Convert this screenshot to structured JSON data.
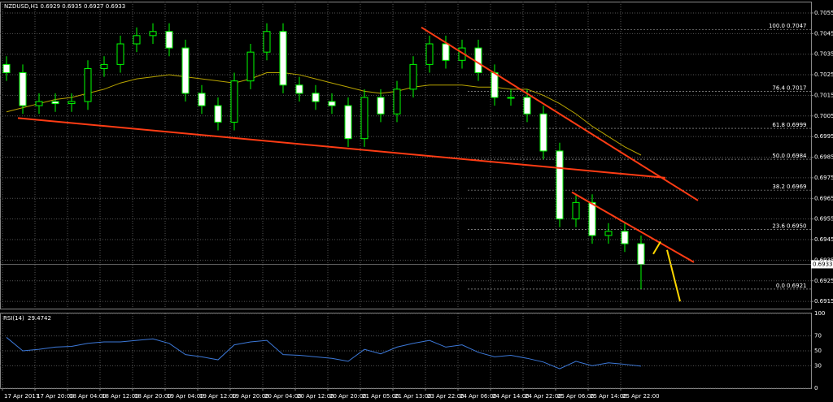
{
  "chart_data": {
    "type": "candlestick",
    "title": "NZDUSD,H1  0.6929 0.6935 0.6927 0.6933",
    "categories": [
      "17 Apr 2017",
      null,
      "17 Apr 20:00",
      null,
      "18 Apr 04:00",
      null,
      "18 Apr 12:00",
      null,
      "18 Apr 20:00",
      null,
      "19 Apr 04:00",
      null,
      "19 Apr 12:00",
      null,
      "19 Apr 20:00",
      null,
      "20 Apr 04:00",
      null,
      "20 Apr 12:00",
      null,
      "20 Apr 20:00",
      null,
      "21 Apr 05:00",
      null,
      "21 Apr 13:00",
      null,
      "23 Apr 22:00",
      null,
      "24 Apr 06:00",
      null,
      "24 Apr 14:00",
      null,
      "24 Apr 22:00",
      null,
      "25 Apr 06:00",
      null,
      "25 Apr 14:00",
      null,
      "25 Apr 22:00",
      null
    ],
    "open": [
      0.703,
      0.7026,
      0.701,
      0.7012,
      0.7011,
      0.7012,
      0.7028,
      0.703,
      0.704,
      0.7044,
      0.7046,
      0.7038,
      0.7016,
      0.701,
      0.7002,
      0.7022,
      0.7036,
      0.7046,
      0.702,
      0.7016,
      0.7012,
      0.701,
      0.6994,
      0.7014,
      0.7006,
      0.7018,
      0.703,
      0.704,
      0.7032,
      0.7038,
      0.7026,
      0.7014,
      0.7014,
      0.7006,
      0.6988,
      0.6955,
      0.6963,
      0.6947,
      0.6949,
      0.6943
    ],
    "high": [
      0.7034,
      0.703,
      0.7016,
      0.7016,
      0.7016,
      0.7032,
      0.7034,
      0.7044,
      0.7048,
      0.705,
      0.705,
      0.7042,
      0.702,
      0.7014,
      0.7026,
      0.704,
      0.705,
      0.705,
      0.7024,
      0.702,
      0.7016,
      0.7014,
      0.7018,
      0.7018,
      0.7022,
      0.7034,
      0.7044,
      0.7044,
      0.7042,
      0.7042,
      0.703,
      0.7018,
      0.7018,
      0.701,
      0.6992,
      0.6967,
      0.6967,
      0.6953,
      0.6953,
      0.6947
    ],
    "low": [
      0.7022,
      0.7006,
      0.7006,
      0.7007,
      0.7007,
      0.7008,
      0.7024,
      0.7026,
      0.7036,
      0.704,
      0.7034,
      0.7012,
      0.7006,
      0.6998,
      0.6998,
      0.7018,
      0.7032,
      0.7016,
      0.7012,
      0.7008,
      0.7006,
      0.699,
      0.699,
      0.7002,
      0.7002,
      0.7014,
      0.7026,
      0.7028,
      0.7028,
      0.7022,
      0.701,
      0.701,
      0.7002,
      0.6984,
      0.6951,
      0.6951,
      0.6943,
      0.6943,
      0.6939,
      0.6921
    ],
    "close": [
      0.7026,
      0.701,
      0.7012,
      0.7011,
      0.7012,
      0.7028,
      0.703,
      0.704,
      0.7044,
      0.7046,
      0.7038,
      0.7016,
      0.701,
      0.7002,
      0.7022,
      0.7036,
      0.7046,
      0.702,
      0.7016,
      0.7012,
      0.701,
      0.6994,
      0.7014,
      0.7006,
      0.7018,
      0.703,
      0.704,
      0.7032,
      0.7038,
      0.7026,
      0.7014,
      0.7014,
      0.7006,
      0.6988,
      0.6955,
      0.6963,
      0.6947,
      0.6949,
      0.6943,
      0.6933
    ],
    "ma": [
      0.7007,
      0.7009,
      0.7011,
      0.7013,
      0.7014,
      0.7016,
      0.7018,
      0.7021,
      0.7023,
      0.7024,
      0.7025,
      0.7024,
      0.7023,
      0.7022,
      0.7021,
      0.7023,
      0.7026,
      0.7026,
      0.7025,
      0.7023,
      0.7021,
      0.7019,
      0.7017,
      0.7016,
      0.7017,
      0.7019,
      0.702,
      0.702,
      0.702,
      0.7019,
      0.7019,
      0.7018,
      0.7018,
      0.7015,
      0.7011,
      0.7006,
      0.7,
      0.6995,
      0.699,
      0.6986
    ],
    "ma_color": "#b8a400",
    "up_color": "#00ff00",
    "down_color": "#ffffff",
    "grid": true,
    "ylim": [
      0.69115,
      0.70605
    ],
    "yticks": [
      0.7055,
      0.7045,
      0.7035,
      0.7025,
      0.7015,
      0.7005,
      0.6995,
      0.6985,
      0.6975,
      0.6965,
      0.6955,
      0.6945,
      0.6935,
      0.6925,
      0.6915
    ],
    "fib_levels": [
      {
        "level": "100.0",
        "price": 0.7047
      },
      {
        "level": "76.4",
        "price": 0.7017
      },
      {
        "level": "61.8",
        "price": 0.6999
      },
      {
        "level": "50.0",
        "price": 0.6984
      },
      {
        "level": "38.2",
        "price": 0.6969
      },
      {
        "level": "23.6",
        "price": {
          "value": 0.695,
          "label": "0.6950"
        }
      },
      {
        "level": "0.0",
        "price": 0.6921
      }
    ],
    "trendline_color": "#ff3c14",
    "trendlines": [
      [
        [
          0.7,
          0.7004
        ],
        [
          40.5,
          0.6975
        ]
      ],
      [
        [
          25.5,
          0.7048
        ],
        [
          42.5,
          0.6964
        ]
      ],
      [
        [
          34.75,
          0.6968
        ],
        [
          42.25,
          0.6934
        ]
      ]
    ],
    "arrow_color": "#ffd700",
    "arrows": [
      [
        [
          39.75,
          0.6938
        ],
        [
          40.2,
          0.6944
        ]
      ],
      [
        [
          40.6,
          0.694
        ],
        [
          41.4,
          0.6915
        ]
      ]
    ],
    "rsi": {
      "name": "RSI(14)",
      "color": "#3c78d8",
      "ylim": [
        0,
        100
      ],
      "yticks": [
        100,
        70,
        50,
        30,
        0
      ],
      "values": [
        68,
        50,
        52,
        55,
        56,
        60,
        62,
        62,
        64,
        66,
        60,
        45,
        42,
        38,
        58,
        62,
        64,
        45,
        44,
        42,
        40,
        36,
        52,
        46,
        55,
        60,
        64,
        55,
        58,
        48,
        42,
        44,
        40,
        35,
        26,
        36,
        30,
        34,
        32,
        29.4742
      ]
    }
  }
}
